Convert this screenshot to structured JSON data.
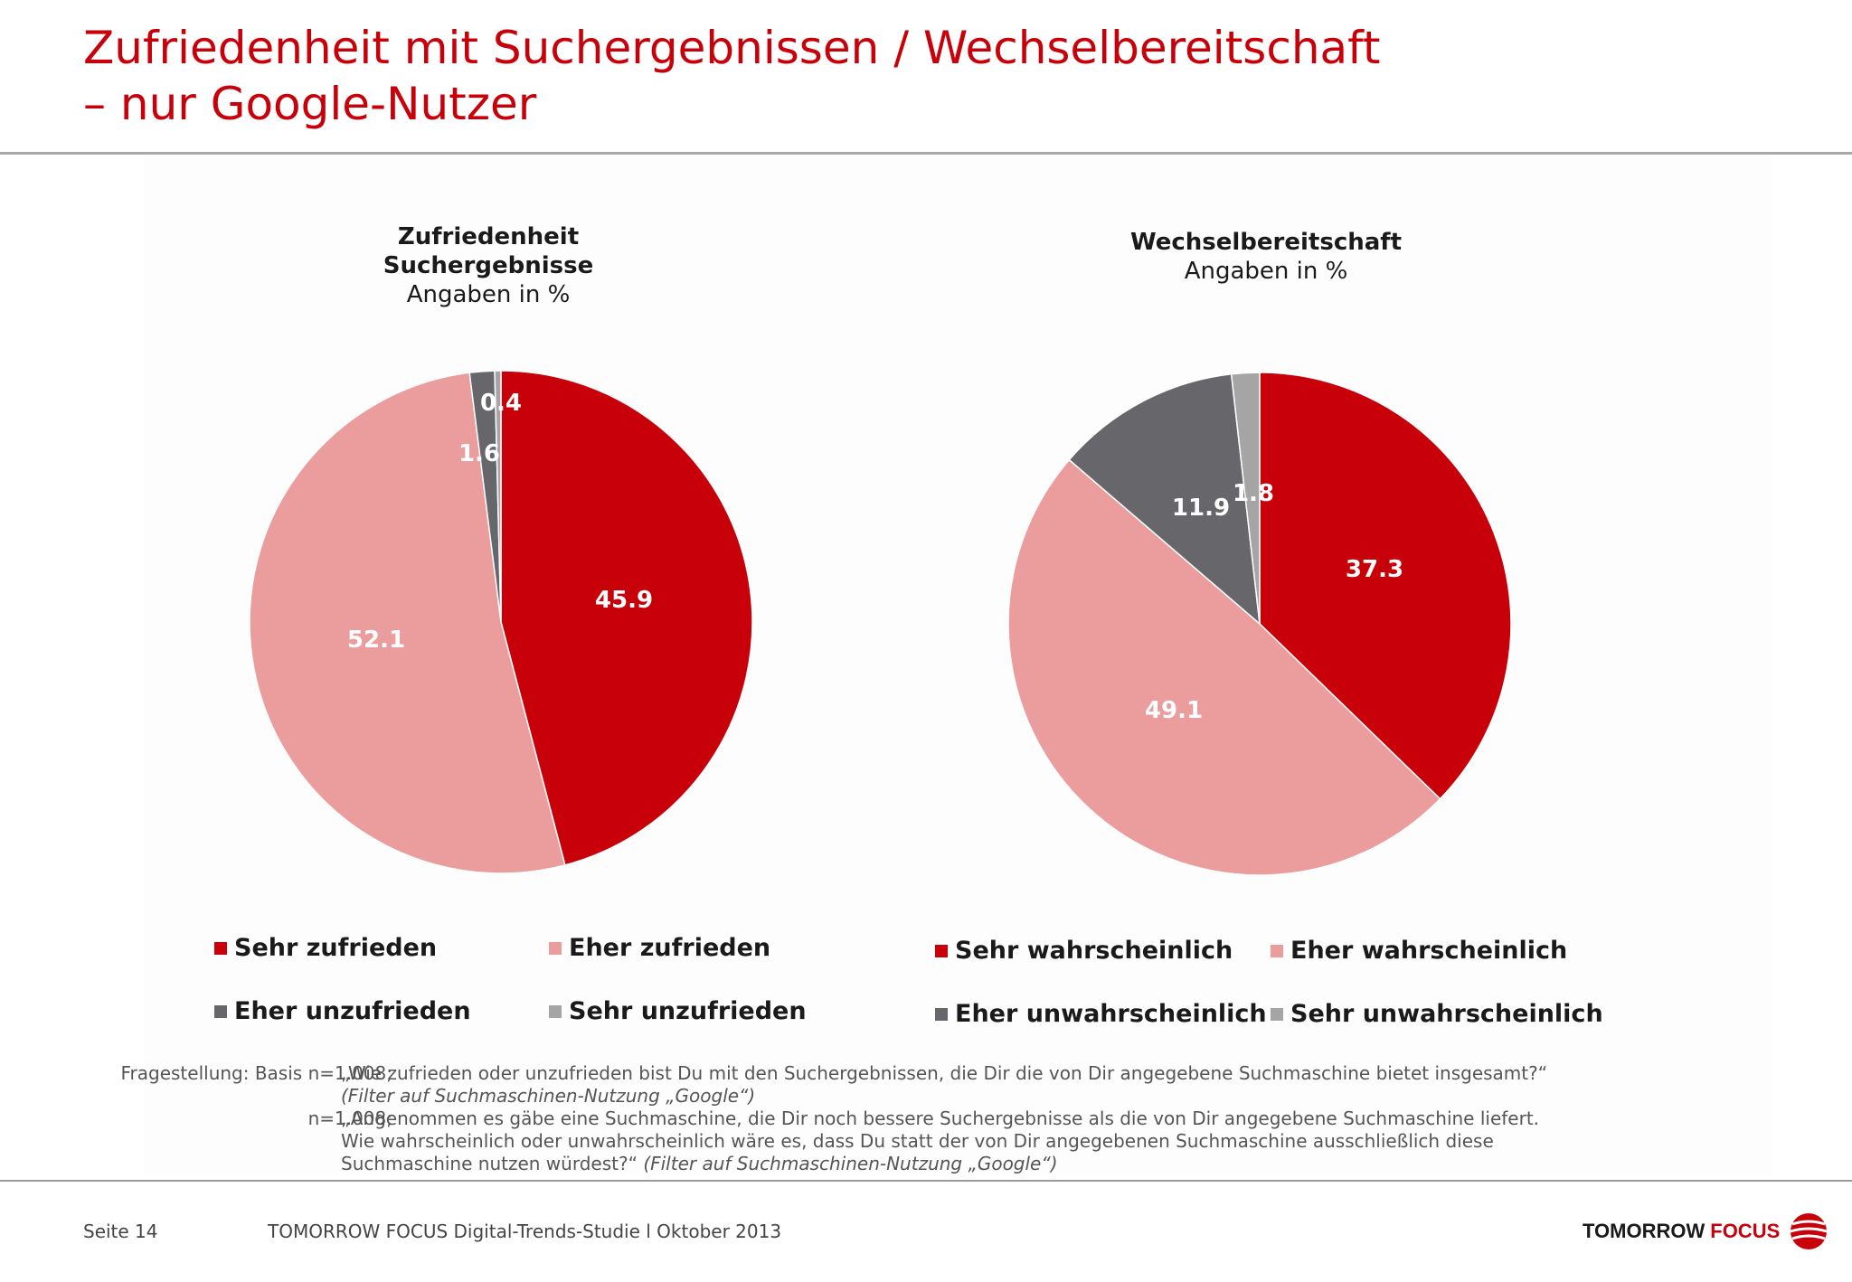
{
  "title": {
    "line1": "Zufriedenheit mit Suchergebnissen / Wechselbereitschaft",
    "line2": "– nur Google-Nutzer"
  },
  "colors": {
    "sehr_positiv": "#c8000a",
    "eher_positiv": "#eb9c9c",
    "eher_negativ": "#67666a",
    "sehr_negativ": "#a5a5a5",
    "title_red": "#c8000a"
  },
  "chart_data": [
    {
      "type": "pie",
      "title": "Zufriedenheit Suchergebnisse",
      "subtitle": "Angaben in %",
      "categories": [
        "Sehr zufrieden",
        "Eher zufrieden",
        "Eher unzufrieden",
        "Sehr unzufrieden"
      ],
      "values": [
        45.9,
        52.1,
        1.6,
        0.4
      ],
      "colors": [
        "#c8000a",
        "#eb9c9c",
        "#67666a",
        "#a5a5a5"
      ],
      "labels": [
        "45.9",
        "52.1",
        "1.6",
        "0.4"
      ],
      "legend": "bottom"
    },
    {
      "type": "pie",
      "title": "Wechselbereitschaft",
      "subtitle": "Angaben in %",
      "categories": [
        "Sehr wahrscheinlich",
        "Eher wahrscheinlich",
        "Eher unwahrscheinlich",
        "Sehr unwahrscheinlich"
      ],
      "values": [
        37.3,
        49.1,
        11.9,
        1.8
      ],
      "colors": [
        "#c8000a",
        "#eb9c9c",
        "#67666a",
        "#a5a5a5"
      ],
      "labels": [
        "37.3",
        "49.1",
        "11.9",
        "1.8"
      ],
      "legend": "bottom"
    }
  ],
  "chart1_head": {
    "title_line1": "Zufriedenheit",
    "title_line2": "Suchergebnisse",
    "subtitle": "Angaben in %"
  },
  "chart2_head": {
    "title": "Wechselbereitschaft",
    "subtitle": "Angaben in %"
  },
  "legend1": [
    "Sehr zufrieden",
    "Eher zufrieden",
    "Eher unzufrieden",
    "Sehr unzufrieden"
  ],
  "legend2": [
    "Sehr wahrscheinlich",
    "Eher wahrscheinlich",
    "Eher unwahrscheinlich",
    "Sehr unwahrscheinlich"
  ],
  "notes": {
    "label1": "Fragestellung: Basis n=1.008;",
    "text1": "„Wie zufrieden oder unzufrieden bist Du mit den Suchergebnissen, die Dir die von Dir angegebene Suchmaschine bietet insgesamt?“",
    "filter1": "(Filter auf Suchmaschinen-Nutzung „Google“)",
    "label2": "n=1.008;",
    "text2a": "„Angenommen es gäbe eine Suchmaschine, die Dir noch bessere Suchergebnisse als die von Dir angegebene Suchmaschine liefert.",
    "text2b": "Wie wahrscheinlich oder unwahrscheinlich wäre es, dass Du statt der von Dir angegebenen Suchmaschine ausschließlich diese",
    "text2c": "Suchmaschine nutzen würdest?“",
    "filter2": "(Filter auf Suchmaschinen-Nutzung „Google“)"
  },
  "footer": {
    "page": "Seite 14",
    "study": "TOMORROW FOCUS Digital-Trends-Studie l Oktober 2013",
    "logo_word1": "TOMORROW",
    "logo_word2": "FOCUS"
  }
}
